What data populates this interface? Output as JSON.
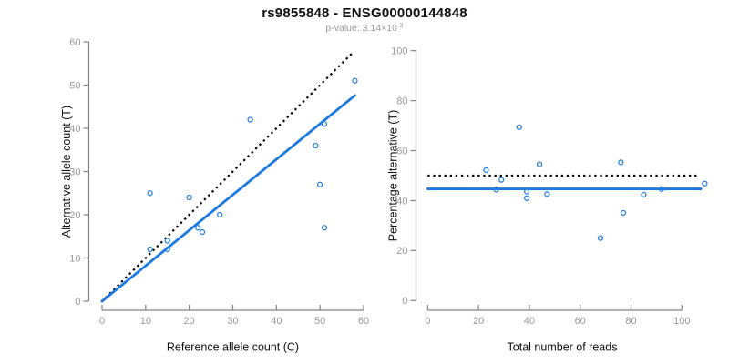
{
  "header": {
    "title": "rs9855848 - ENSG00000144848",
    "subtitle_prefix": "p-value: 3.14×10",
    "subtitle_exponent": "-3"
  },
  "colors": {
    "fit_line_blue": "#1b79e0",
    "point_blue": "#2e82dc",
    "dotted_line_black": "#000000",
    "axis_gray": "#828282",
    "tick_label_gray": "#999999",
    "title_black": "#111111",
    "subtitle_gray": "#9a9a9a"
  },
  "chart_data": [
    {
      "type": "scatter",
      "name": "allele-counts-scatter",
      "xlabel": "Reference allele count (C)",
      "ylabel": "Alternative allele count (T)",
      "xlim": [
        0,
        60
      ],
      "ylim": [
        0,
        60
      ],
      "xticks": [
        0,
        10,
        20,
        30,
        40,
        50,
        60
      ],
      "yticks": [
        0,
        10,
        20,
        30,
        40,
        50,
        60
      ],
      "grid": false,
      "legend": "none",
      "points": [
        [
          11,
          25
        ],
        [
          11,
          12
        ],
        [
          15,
          14
        ],
        [
          15,
          12
        ],
        [
          20,
          24
        ],
        [
          22,
          17
        ],
        [
          23,
          16
        ],
        [
          27,
          20
        ],
        [
          34,
          42
        ],
        [
          49,
          36
        ],
        [
          50,
          27
        ],
        [
          51,
          17
        ],
        [
          51,
          41
        ],
        [
          58,
          51
        ]
      ],
      "lines": [
        {
          "name": "identity-line",
          "style": "dotted",
          "color": "#000000",
          "x1": 0.8,
          "y1": 0.8,
          "x2": 57.5,
          "y2": 57.5
        },
        {
          "name": "fit-line",
          "style": "solid",
          "color": "#1b79e0",
          "x1": 0,
          "y1": 0,
          "x2": 58,
          "y2": 47.6
        }
      ]
    },
    {
      "type": "scatter",
      "name": "percentage-vs-reads-scatter",
      "xlabel": "Total number of reads",
      "ylabel": "Percentage alternative (T)",
      "xlim": [
        0,
        110
      ],
      "ylim": [
        0,
        100
      ],
      "xticks": [
        0,
        20,
        40,
        60,
        80,
        100
      ],
      "yticks": [
        0,
        20,
        40,
        60,
        80,
        100
      ],
      "grid": false,
      "legend": "none",
      "points": [
        [
          23,
          52.2
        ],
        [
          27,
          44.4
        ],
        [
          29,
          48.3
        ],
        [
          36,
          69.4
        ],
        [
          39,
          43.6
        ],
        [
          39,
          41
        ],
        [
          44,
          54.5
        ],
        [
          47,
          42.6
        ],
        [
          68,
          25
        ],
        [
          76,
          55.3
        ],
        [
          77,
          35.1
        ],
        [
          85,
          42.4
        ],
        [
          92,
          44.6
        ],
        [
          109,
          46.8
        ]
      ],
      "lines": [
        {
          "name": "expected-50pct-line",
          "style": "dotted",
          "color": "#000000",
          "x1": 0,
          "y1": 50,
          "x2": 106.5,
          "y2": 50
        },
        {
          "name": "mean-percentage-line",
          "style": "solid",
          "color": "#1b79e0",
          "x1": 0,
          "y1": 44.7,
          "x2": 107.5,
          "y2": 44.7
        }
      ]
    }
  ]
}
